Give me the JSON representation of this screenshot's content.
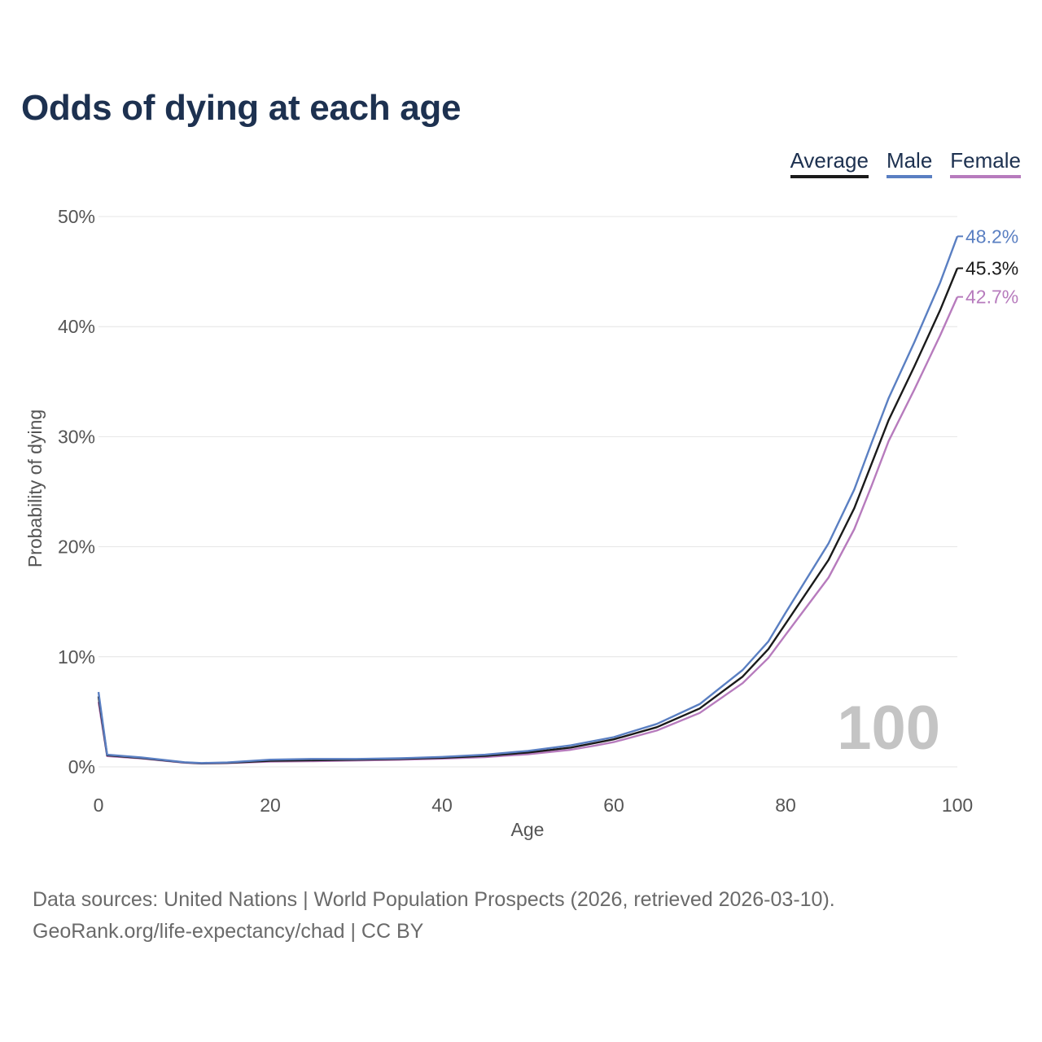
{
  "title": "Odds of dying at each age",
  "legend": [
    {
      "label": "Average",
      "color": "#1a1a1a"
    },
    {
      "label": "Male",
      "color": "#5a7fc2"
    },
    {
      "label": "Female",
      "color": "#b77bbd"
    }
  ],
  "footer": {
    "line1": "Data sources: United Nations | World Population Prospects (2026, retrieved 2026-03-10).",
    "line2": "GeoRank.org/life-expectancy/chad | CC BY"
  },
  "chart_data": {
    "type": "line",
    "title": "Odds of dying at each age",
    "xlabel": "Age",
    "ylabel": "Probability of dying",
    "xlim": [
      0,
      100
    ],
    "ylim": [
      0,
      50
    ],
    "xticks": [
      0,
      20,
      40,
      60,
      80,
      100
    ],
    "xtick_labels": [
      "0",
      "20",
      "40",
      "60",
      "80",
      "100"
    ],
    "yticks": [
      0,
      10,
      20,
      30,
      40,
      50
    ],
    "ytick_labels": [
      "0%",
      "10%",
      "20%",
      "30%",
      "40%",
      "50%"
    ],
    "grid": true,
    "watermark": "100",
    "end_labels": {
      "Male": "48.2%",
      "Average": "45.3%",
      "Female": "42.7%"
    },
    "x": [
      0,
      1,
      5,
      10,
      12,
      15,
      20,
      25,
      30,
      35,
      40,
      45,
      50,
      55,
      58,
      60,
      65,
      70,
      75,
      78,
      80,
      85,
      88,
      90,
      92,
      95,
      98,
      100
    ],
    "series": [
      {
        "name": "Average",
        "color": "#1a1a1a",
        "values": [
          6.4,
          1.05,
          0.8,
          0.4,
          0.32,
          0.36,
          0.55,
          0.6,
          0.65,
          0.72,
          0.82,
          1.0,
          1.3,
          1.75,
          2.2,
          2.5,
          3.6,
          5.3,
          8.2,
          10.7,
          13.0,
          18.8,
          23.5,
          27.5,
          31.5,
          36.4,
          41.5,
          45.3
        ]
      },
      {
        "name": "Male",
        "color": "#5a7fc2",
        "values": [
          6.8,
          1.1,
          0.85,
          0.42,
          0.35,
          0.4,
          0.65,
          0.72,
          0.72,
          0.78,
          0.9,
          1.1,
          1.45,
          1.95,
          2.4,
          2.7,
          3.9,
          5.7,
          8.8,
          11.4,
          14.0,
          20.3,
          25.2,
          29.4,
          33.5,
          38.6,
          44.0,
          48.2
        ]
      },
      {
        "name": "Female",
        "color": "#b77bbd",
        "values": [
          5.9,
          0.98,
          0.76,
          0.38,
          0.3,
          0.34,
          0.48,
          0.52,
          0.58,
          0.64,
          0.75,
          0.88,
          1.15,
          1.55,
          1.95,
          2.25,
          3.3,
          4.9,
          7.6,
          9.9,
          12.0,
          17.2,
          21.6,
          25.5,
          29.6,
          34.3,
          39.2,
          42.7
        ]
      }
    ]
  }
}
